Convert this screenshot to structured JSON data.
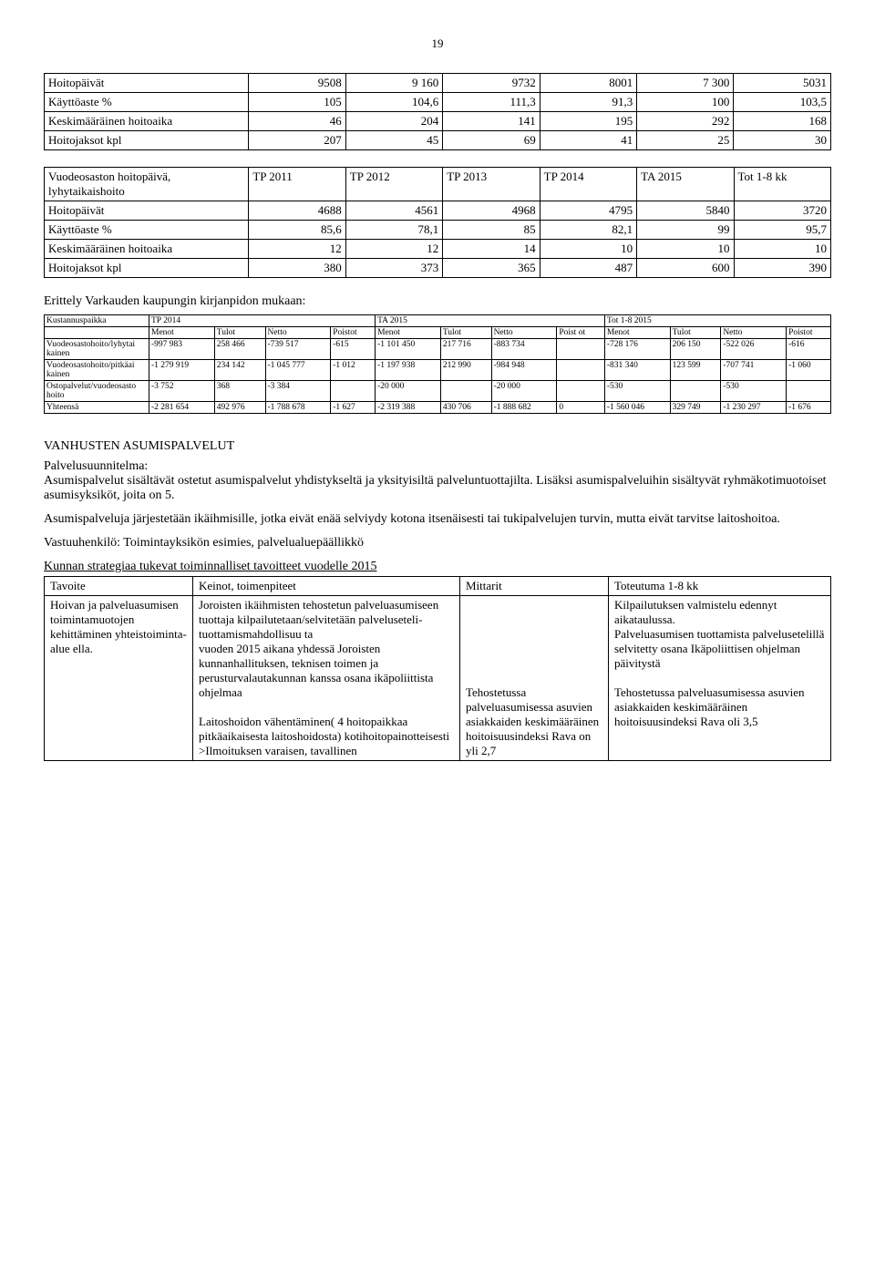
{
  "page_number": "19",
  "table1": {
    "rows": [
      {
        "label": "Hoitopäivät",
        "c1": "9508",
        "c2": "9 160",
        "c3": "9732",
        "c4": "8001",
        "c5": "7 300",
        "c6": "5031"
      },
      {
        "label": "Käyttöaste %",
        "c1": "105",
        "c2": "104,6",
        "c3": "111,3",
        "c4": "91,3",
        "c5": "100",
        "c6": "103,5"
      },
      {
        "label": "Keskimääräinen hoitoaika",
        "c1": "46",
        "c2": "204",
        "c3": "141",
        "c4": "195",
        "c5": "292",
        "c6": "168"
      },
      {
        "label": "Hoitojaksot kpl",
        "c1": "207",
        "c2": "45",
        "c3": "69",
        "c4": "41",
        "c5": "25",
        "c6": "30"
      }
    ]
  },
  "table2": {
    "header_row": {
      "label": "Vuodeosaston hoitopäivä, lyhytaikaishoito",
      "c1": "TP 2011",
      "c2": "TP 2012",
      "c3": "TP 2013",
      "c4": "TP 2014",
      "c5": "TA 2015",
      "c6": "Tot 1-8 kk"
    },
    "rows": [
      {
        "label": "Hoitopäivät",
        "c1": "4688",
        "c2": "4561",
        "c3": "4968",
        "c4": "4795",
        "c5": "5840",
        "c6": "3720"
      },
      {
        "label": "Käyttöaste %",
        "c1": "85,6",
        "c2": "78,1",
        "c3": "85",
        "c4": "82,1",
        "c5": "99",
        "c6": "95,7"
      },
      {
        "label": "Keskimääräinen hoitoaika",
        "c1": "12",
        "c2": "12",
        "c3": "14",
        "c4": "10",
        "c5": "10",
        "c6": "10"
      },
      {
        "label": "Hoitojaksot kpl",
        "c1": "380",
        "c2": "373",
        "c3": "365",
        "c4": "487",
        "c5": "600",
        "c6": "390"
      }
    ]
  },
  "erittely_title": "Erittely Varkauden kaupungin kirjanpidon mukaan:",
  "table3": {
    "group_headers": {
      "col0": "Kustannuspaikka",
      "g1": "TP 2014",
      "g2": "TA 2015",
      "g3": "Tot 1-8 2015"
    },
    "sub_headers": [
      "Menot",
      "Tulot",
      "Netto",
      "Poistot",
      "Menot",
      "Tulot",
      "Netto",
      "Poist ot",
      "Menot",
      "Tulot",
      "Netto",
      "Poistot"
    ],
    "rows": [
      {
        "label": "Vuodeosastohoito/lyhytai kainen",
        "v": [
          "-997 983",
          "258 466",
          "-739 517",
          "-615",
          "-1 101 450",
          "217 716",
          "-883 734",
          "",
          "-728 176",
          "206 150",
          "-522 026",
          "-616"
        ]
      },
      {
        "label": "Vuodeosastohoito/pitkäai kainen",
        "v": [
          "-1 279 919",
          "234 142",
          "-1 045 777",
          "-1 012",
          "-1 197 938",
          "212 990",
          "-984 948",
          "",
          "-831 340",
          "123 599",
          "-707 741",
          "-1 060"
        ]
      },
      {
        "label": "Ostopalvelut/vuodeosasto hoito",
        "v": [
          "-3 752",
          "368",
          "-3 384",
          "",
          "-20 000",
          "",
          "-20 000",
          "",
          "-530",
          "",
          "-530",
          ""
        ]
      },
      {
        "label": "Yhteensä",
        "v": [
          "-2 281 654",
          "492 976",
          "-1 788 678",
          "-1 627",
          "-2 319 388",
          "430 706",
          "-1 888 682",
          "0",
          "-1 560 046",
          "329 749",
          "-1 230 297",
          "-1 676"
        ]
      }
    ]
  },
  "section_heading": "VANHUSTEN ASUMISPALVELUT",
  "palvelusuunnitelma_label": "Palvelusuunnitelma:",
  "para1": "Asumispalvelut sisältävät ostetut asumispalvelut yhdistykseltä ja yksityisiltä palveluntuottajilta. Lisäksi asumispalveluihin sisältyvät ryhmäkotimuotoiset asumisyksiköt, joita on 5.",
  "para2": "Asumispalveluja järjestetään ikäihmisille, jotka eivät enää selviydy kotona itsenäisesti tai tukipalvelujen turvin, mutta eivät tarvitse laitoshoitoa.",
  "para3": "Vastuuhenkilö: Toimintayksikön esimies, palvelualuepäällikkö",
  "strategy_title": "Kunnan strategiaa tukevat toiminnalliset tavoitteet vuodelle 2015",
  "strategy": {
    "headers": [
      "Tavoite",
      "Keinot, toimenpiteet",
      "Mittarit",
      "Toteutuma 1-8 kk"
    ],
    "row": {
      "tavoite": "Hoivan ja palveluasumisen toimintamuotojen kehittäminen yhteistoiminta-alue ella.",
      "keinot": "Joroisten ikäihmisten tehostetun palveluasumiseen tuottaja kilpailutetaan/selvitetään palveluseteli-tuottamismahdollisuu ta\nvuoden 2015 aikana yhdessä Joroisten kunnanhallituksen, teknisen toimen ja perusturvalautakunnan kanssa osana ikäpoliittista ohjelmaa\n\nLaitoshoidon vähentäminen( 4 hoitopaikkaa pitkäaikaisesta laitoshoidosta) kotihoitopainotteisesti\n>Ilmoituksen varaisen, tavallinen",
      "mittarit": "Tehostetussa palveluasumisessa asuvien asiakkaiden keskimääräinen hoitoisuusindeksi Rava on yli 2,7",
      "toteutuma": "Kilpailutuksen valmistelu edennyt aikataulussa.\nPalveluasumisen tuottamista palvelusetelillä selvitetty osana Ikäpoliittisen ohjelman päivitystä\n\nTehostetussa palveluasumisessa asuvien asiakkaiden keskimääräinen hoitoisuusindeksi Rava oli 3,5"
    }
  }
}
